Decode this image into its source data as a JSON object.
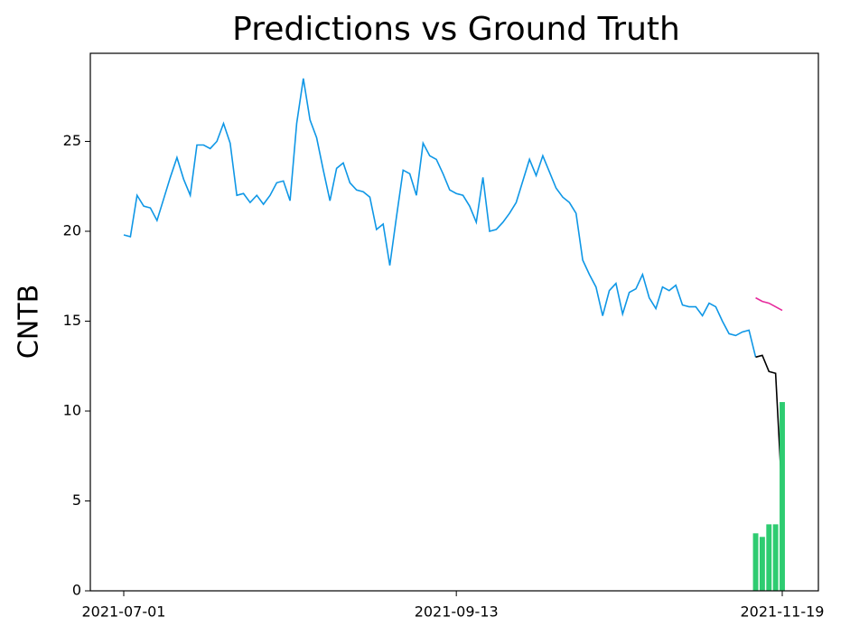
{
  "chart_data": {
    "type": "line",
    "title": "Predictions vs Ground Truth",
    "ylabel": "CNTB",
    "categories": [
      "2021-07-01",
      null,
      null,
      null,
      null,
      null,
      null,
      null,
      null,
      null,
      null,
      null,
      null,
      null,
      null,
      null,
      null,
      null,
      null,
      null,
      null,
      null,
      null,
      null,
      null,
      null,
      null,
      null,
      null,
      null,
      null,
      null,
      null,
      null,
      null,
      null,
      null,
      null,
      null,
      null,
      null,
      null,
      null,
      null,
      null,
      null,
      null,
      null,
      null,
      null,
      "2021-09-13",
      null,
      null,
      null,
      null,
      null,
      null,
      null,
      null,
      null,
      null,
      null,
      null,
      null,
      null,
      null,
      null,
      null,
      null,
      null,
      null,
      null,
      null,
      null,
      null,
      null,
      null,
      null,
      null,
      null,
      null,
      null,
      null,
      null,
      null,
      null,
      null,
      null,
      null,
      null,
      null,
      null,
      null,
      null,
      null,
      null,
      null,
      null,
      null,
      "2021-11-19"
    ],
    "series": [
      {
        "type": "line",
        "color": "#0f97e6",
        "values": [
          19.8,
          19.7,
          22.0,
          21.4,
          21.3,
          20.6,
          21.8,
          23.0,
          24.1,
          22.9,
          22.0,
          24.8,
          24.8,
          24.6,
          25.0,
          26.0,
          24.9,
          22.0,
          22.1,
          21.6,
          22.0,
          21.5,
          22.0,
          22.7,
          22.8,
          21.7,
          26.0,
          28.5,
          26.2,
          25.2,
          23.4,
          21.7,
          23.5,
          23.8,
          22.7,
          22.3,
          22.2,
          21.9,
          20.1,
          20.4,
          18.1,
          20.8,
          23.4,
          23.2,
          22.0,
          24.9,
          24.2,
          24.0,
          23.2,
          22.3,
          22.1,
          22.0,
          21.4,
          20.5,
          23.0,
          20.0,
          20.1,
          20.5,
          21.0,
          21.6,
          22.8,
          24.0,
          23.1,
          24.2,
          23.3,
          22.4,
          21.9,
          21.6,
          21.0,
          18.4,
          17.6,
          16.9,
          15.3,
          16.7,
          17.1,
          15.4,
          16.6,
          16.8,
          17.6,
          16.3,
          15.7,
          16.9,
          16.7,
          17.0,
          15.9,
          15.8,
          15.8,
          15.3,
          16.0,
          15.8,
          15.0,
          14.3,
          14.2,
          14.4,
          14.5,
          13.0,
          null,
          null,
          null,
          null
        ]
      },
      {
        "type": "line",
        "color": "#000000",
        "values": [
          null,
          null,
          null,
          null,
          null,
          null,
          null,
          null,
          null,
          null,
          null,
          null,
          null,
          null,
          null,
          null,
          null,
          null,
          null,
          null,
          null,
          null,
          null,
          null,
          null,
          null,
          null,
          null,
          null,
          null,
          null,
          null,
          null,
          null,
          null,
          null,
          null,
          null,
          null,
          null,
          null,
          null,
          null,
          null,
          null,
          null,
          null,
          null,
          null,
          null,
          null,
          null,
          null,
          null,
          null,
          null,
          null,
          null,
          null,
          null,
          null,
          null,
          null,
          null,
          null,
          null,
          null,
          null,
          null,
          null,
          null,
          null,
          null,
          null,
          null,
          null,
          null,
          null,
          null,
          null,
          null,
          null,
          null,
          null,
          null,
          null,
          null,
          null,
          null,
          null,
          null,
          null,
          null,
          null,
          null,
          13.0,
          13.1,
          12.2,
          12.1,
          5.1
        ]
      },
      {
        "type": "line",
        "color": "#e62a9c",
        "values": [
          null,
          null,
          null,
          null,
          null,
          null,
          null,
          null,
          null,
          null,
          null,
          null,
          null,
          null,
          null,
          null,
          null,
          null,
          null,
          null,
          null,
          null,
          null,
          null,
          null,
          null,
          null,
          null,
          null,
          null,
          null,
          null,
          null,
          null,
          null,
          null,
          null,
          null,
          null,
          null,
          null,
          null,
          null,
          null,
          null,
          null,
          null,
          null,
          null,
          null,
          null,
          null,
          null,
          null,
          null,
          null,
          null,
          null,
          null,
          null,
          null,
          null,
          null,
          null,
          null,
          null,
          null,
          null,
          null,
          null,
          null,
          null,
          null,
          null,
          null,
          null,
          null,
          null,
          null,
          null,
          null,
          null,
          null,
          null,
          null,
          null,
          null,
          null,
          null,
          null,
          null,
          null,
          null,
          null,
          null,
          16.3,
          16.1,
          16.0,
          15.8,
          15.6
        ]
      },
      {
        "type": "bar",
        "color": "#2ecc71",
        "values": [
          null,
          null,
          null,
          null,
          null,
          null,
          null,
          null,
          null,
          null,
          null,
          null,
          null,
          null,
          null,
          null,
          null,
          null,
          null,
          null,
          null,
          null,
          null,
          null,
          null,
          null,
          null,
          null,
          null,
          null,
          null,
          null,
          null,
          null,
          null,
          null,
          null,
          null,
          null,
          null,
          null,
          null,
          null,
          null,
          null,
          null,
          null,
          null,
          null,
          null,
          null,
          null,
          null,
          null,
          null,
          null,
          null,
          null,
          null,
          null,
          null,
          null,
          null,
          null,
          null,
          null,
          null,
          null,
          null,
          null,
          null,
          null,
          null,
          null,
          null,
          null,
          null,
          null,
          null,
          null,
          null,
          null,
          null,
          null,
          null,
          null,
          null,
          null,
          null,
          null,
          null,
          null,
          null,
          null,
          null,
          3.2,
          3.0,
          3.7,
          3.7,
          10.5
        ]
      }
    ],
    "ylim": [
      0,
      29.9
    ],
    "yticks": [
      0,
      5,
      10,
      15,
      20,
      25
    ]
  }
}
